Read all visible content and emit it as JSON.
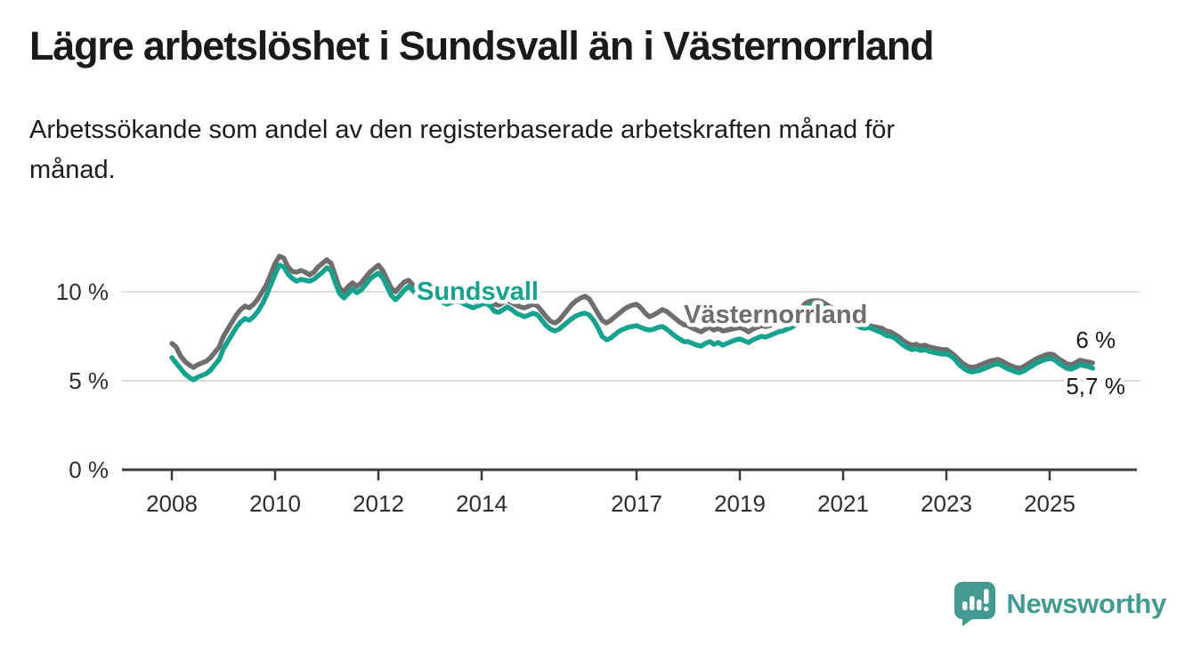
{
  "header": {
    "title": "Lägre arbetslöshet i Sundsvall än i Västernorrland",
    "subtitle": "Arbetssökande som andel av den registerbaserade arbetskraften månad för\nmånad."
  },
  "branding": {
    "logo_text": "Newsworthy",
    "logo_color": "#449a90",
    "logo_icon": "speech-bubble-bar-chart-icon"
  },
  "chart_data": {
    "type": "line",
    "title": "Lägre arbetslöshet i Sundsvall än i Västernorrland",
    "subtitle": "Arbetssökande som andel av den registerbaserade arbetskraften månad för månad.",
    "x_unit": "month",
    "x_start": "2008-01",
    "x_end": "2025-11",
    "x_tick_years": [
      2008,
      2010,
      2012,
      2014,
      2017,
      2019,
      2021,
      2023,
      2025
    ],
    "x_tick_labels": [
      "2008",
      "2010",
      "2012",
      "2014",
      "2017",
      "2019",
      "2021",
      "2023",
      "2025"
    ],
    "y_tick_values": [
      0,
      5,
      10
    ],
    "y_tick_labels": [
      "0 %",
      "5 %",
      "10 %"
    ],
    "ylim": [
      0,
      13.5
    ],
    "grid": "horizontal",
    "legend": "inline-series-labels",
    "colors": {
      "sundsvall": "#17a28e",
      "vasternorrland": "#6e6e6e",
      "gridline": "#dcdcdc",
      "axis": "#3b3b3b",
      "axis_text": "#2e2e2e",
      "annotation_text": "#1a1a1a"
    },
    "series": [
      {
        "name": "Västernorrland",
        "color": "#6e6e6e",
        "end_label": "6 %",
        "values": [
          7.1,
          6.9,
          6.4,
          6.1,
          5.9,
          5.75,
          5.9,
          6.0,
          6.1,
          6.3,
          6.6,
          6.9,
          7.5,
          7.9,
          8.3,
          8.7,
          9.0,
          9.2,
          9.1,
          9.3,
          9.6,
          10.0,
          10.4,
          11.0,
          11.6,
          12.0,
          11.9,
          11.4,
          11.15,
          11.1,
          11.2,
          11.1,
          10.95,
          11.1,
          11.4,
          11.6,
          11.8,
          11.6,
          10.9,
          10.2,
          10.0,
          10.3,
          10.5,
          10.3,
          10.5,
          10.8,
          11.1,
          11.3,
          11.5,
          11.2,
          10.7,
          10.2,
          10.0,
          10.3,
          10.55,
          10.65,
          10.4,
          10.0,
          9.8,
          9.95,
          10.15,
          10.25,
          10.1,
          9.8,
          9.7,
          9.8,
          9.9,
          9.8,
          9.65,
          9.5,
          9.45,
          9.5,
          9.6,
          9.65,
          9.5,
          9.3,
          9.25,
          9.4,
          9.5,
          9.4,
          9.25,
          9.15,
          9.1,
          9.2,
          9.3,
          9.2,
          8.9,
          8.6,
          8.35,
          8.25,
          8.4,
          8.7,
          9.0,
          9.3,
          9.5,
          9.65,
          9.75,
          9.6,
          9.2,
          8.8,
          8.4,
          8.25,
          8.4,
          8.6,
          8.8,
          9.0,
          9.15,
          9.25,
          9.3,
          9.1,
          8.8,
          8.6,
          8.7,
          8.85,
          9.0,
          8.9,
          8.7,
          8.5,
          8.3,
          8.15,
          8.1,
          7.95,
          7.85,
          7.75,
          7.9,
          8.0,
          7.85,
          7.95,
          7.8,
          7.85,
          7.9,
          7.95,
          8.0,
          7.9,
          7.75,
          7.9,
          8.0,
          8.1,
          8.05,
          8.1,
          8.2,
          8.25,
          8.3,
          8.4,
          8.5,
          8.65,
          8.8,
          9.3,
          9.45,
          9.5,
          9.5,
          9.45,
          9.3,
          9.15,
          9.0,
          8.95,
          8.85,
          8.7,
          8.5,
          8.3,
          8.1,
          8.05,
          8.1,
          8.05,
          8.0,
          7.95,
          7.8,
          7.75,
          7.6,
          7.45,
          7.25,
          7.1,
          7.0,
          7.05,
          6.95,
          7.0,
          6.9,
          6.85,
          6.8,
          6.75,
          6.75,
          6.6,
          6.4,
          6.15,
          5.95,
          5.8,
          5.75,
          5.8,
          5.9,
          6.0,
          6.1,
          6.15,
          6.2,
          6.1,
          5.95,
          5.85,
          5.75,
          5.7,
          5.8,
          5.95,
          6.1,
          6.25,
          6.35,
          6.45,
          6.5,
          6.45,
          6.25,
          6.1,
          5.95,
          5.9,
          6.0,
          6.15,
          6.1,
          6.05,
          6.0
        ]
      },
      {
        "name": "Sundsvall",
        "color": "#17a28e",
        "end_label": "5,7 %",
        "values": [
          6.3,
          6.0,
          5.7,
          5.4,
          5.2,
          5.05,
          5.2,
          5.3,
          5.4,
          5.6,
          5.9,
          6.2,
          6.8,
          7.2,
          7.6,
          8.0,
          8.3,
          8.5,
          8.4,
          8.6,
          8.9,
          9.3,
          9.8,
          10.4,
          11.0,
          11.5,
          11.4,
          11.0,
          10.75,
          10.6,
          10.7,
          10.65,
          10.6,
          10.7,
          10.9,
          11.1,
          11.35,
          11.2,
          10.5,
          9.9,
          9.65,
          9.9,
          10.15,
          9.95,
          10.1,
          10.4,
          10.7,
          10.9,
          11.05,
          10.8,
          10.3,
          9.8,
          9.55,
          9.8,
          10.1,
          10.3,
          10.1,
          9.75,
          9.5,
          9.6,
          9.8,
          9.9,
          9.7,
          9.4,
          9.3,
          9.4,
          9.5,
          9.45,
          9.3,
          9.2,
          9.1,
          9.2,
          9.3,
          9.35,
          9.2,
          8.9,
          8.85,
          9.0,
          9.15,
          9.0,
          8.8,
          8.7,
          8.6,
          8.7,
          8.8,
          8.7,
          8.4,
          8.1,
          7.9,
          7.8,
          7.9,
          8.1,
          8.3,
          8.5,
          8.65,
          8.75,
          8.8,
          8.7,
          8.4,
          8.0,
          7.5,
          7.3,
          7.4,
          7.6,
          7.8,
          7.9,
          8.0,
          8.05,
          8.1,
          8.0,
          7.9,
          7.85,
          7.9,
          8.0,
          8.05,
          7.9,
          7.7,
          7.5,
          7.35,
          7.2,
          7.2,
          7.1,
          7.0,
          6.95,
          7.1,
          7.2,
          7.05,
          7.15,
          7.0,
          7.1,
          7.2,
          7.3,
          7.35,
          7.25,
          7.15,
          7.3,
          7.4,
          7.5,
          7.45,
          7.55,
          7.65,
          7.75,
          7.8,
          7.9,
          8.0,
          8.15,
          8.3,
          9.0,
          9.2,
          9.3,
          9.3,
          9.25,
          9.1,
          8.9,
          8.8,
          8.7,
          8.6,
          8.5,
          8.3,
          8.15,
          8.0,
          7.95,
          8.0,
          7.9,
          7.8,
          7.7,
          7.55,
          7.5,
          7.4,
          7.2,
          7.0,
          6.85,
          6.75,
          6.8,
          6.7,
          6.75,
          6.65,
          6.6,
          6.55,
          6.5,
          6.5,
          6.4,
          6.2,
          5.9,
          5.7,
          5.55,
          5.5,
          5.55,
          5.6,
          5.7,
          5.8,
          5.9,
          5.95,
          5.85,
          5.7,
          5.6,
          5.5,
          5.45,
          5.55,
          5.7,
          5.85,
          6.0,
          6.1,
          6.2,
          6.25,
          6.2,
          6.0,
          5.85,
          5.7,
          5.65,
          5.75,
          5.9,
          5.85,
          5.8,
          5.7
        ]
      }
    ]
  }
}
